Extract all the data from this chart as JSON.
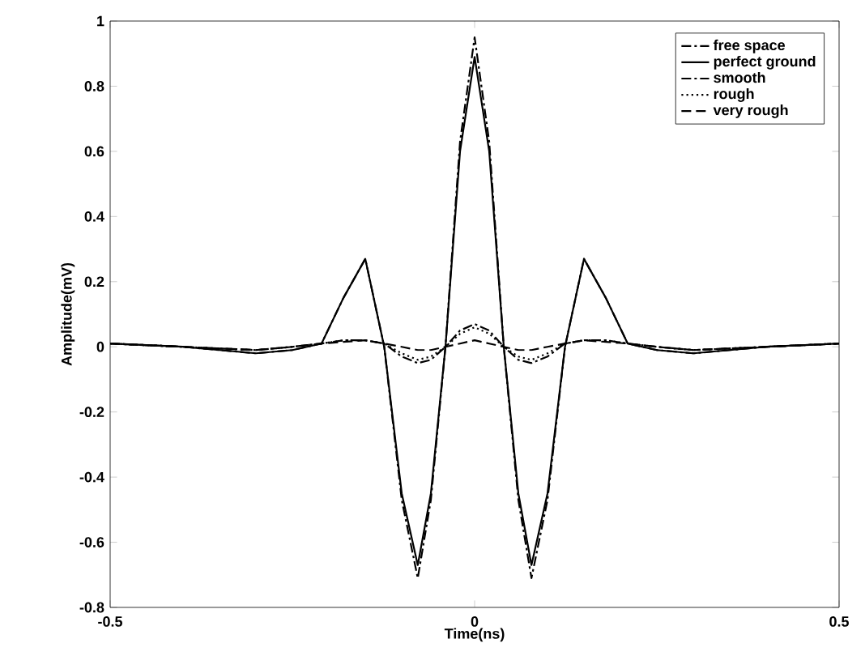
{
  "chart_data": {
    "type": "line",
    "xlabel": "Time(ns)",
    "ylabel": "Amplitude(mV)",
    "x": [
      -0.5,
      -0.4,
      -0.3,
      -0.25,
      -0.21,
      -0.18,
      -0.15,
      -0.124,
      -0.1,
      -0.078,
      -0.06,
      -0.04,
      -0.02,
      0,
      0.02,
      0.04,
      0.06,
      0.078,
      0.1,
      0.124,
      0.15,
      0.18,
      0.21,
      0.25,
      0.3,
      0.4,
      0.5
    ],
    "series": [
      {
        "name": "free space",
        "color": "#000000",
        "line_style": "dashdot",
        "values": [
          0.01,
          0,
          -0.02,
          -0.01,
          0.01,
          0.15,
          0.27,
          0,
          -0.47,
          -0.71,
          -0.47,
          0,
          0.63,
          0.95,
          0.63,
          0,
          -0.47,
          -0.71,
          -0.47,
          0,
          0.27,
          0.15,
          0.01,
          -0.01,
          -0.02,
          0,
          0.01
        ]
      },
      {
        "name": "perfect ground",
        "color": "#000000",
        "line_style": "solid",
        "values": [
          0.01,
          0,
          -0.02,
          -0.01,
          0.01,
          0.15,
          0.27,
          0,
          -0.45,
          -0.67,
          -0.45,
          0,
          0.6,
          0.89,
          0.6,
          0,
          -0.45,
          -0.67,
          -0.45,
          0,
          0.27,
          0.15,
          0.01,
          -0.01,
          -0.02,
          0,
          0.01
        ]
      },
      {
        "name": "smooth",
        "color": "#000000",
        "line_style": "dashdot",
        "values": [
          0.01,
          0,
          -0.01,
          0,
          0.01,
          0.02,
          0.02,
          0.01,
          -0.03,
          -0.05,
          -0.04,
          0,
          0.05,
          0.07,
          0.05,
          0,
          -0.04,
          -0.05,
          -0.03,
          0.01,
          0.02,
          0.02,
          0.01,
          0,
          -0.01,
          0,
          0.01
        ]
      },
      {
        "name": "rough",
        "color": "#000000",
        "line_style": "dotted",
        "values": [
          0.01,
          0,
          -0.01,
          0,
          0.01,
          0.02,
          0.02,
          0.01,
          -0.02,
          -0.04,
          -0.03,
          0,
          0.04,
          0.06,
          0.04,
          0,
          -0.03,
          -0.04,
          -0.02,
          0.01,
          0.02,
          0.02,
          0.01,
          0,
          -0.01,
          0,
          0.01
        ]
      },
      {
        "name": "very rough",
        "color": "#000000",
        "line_style": "dashed",
        "values": [
          0.01,
          0,
          -0.01,
          0,
          0.01,
          0.015,
          0.02,
          0.01,
          0,
          -0.01,
          -0.01,
          0,
          0.01,
          0.02,
          0.01,
          0,
          -0.01,
          -0.01,
          0,
          0.01,
          0.02,
          0.015,
          0.01,
          0,
          -0.01,
          0,
          0.01
        ]
      }
    ],
    "xlim": [
      -0.5,
      0.5
    ],
    "ylim": [
      -0.8,
      1
    ],
    "xticks": [
      -0.5,
      0,
      0.5
    ],
    "yticks": [
      -0.8,
      -0.6,
      -0.4,
      -0.2,
      0,
      0.2,
      0.4,
      0.6,
      0.8,
      1
    ],
    "grid": false,
    "legend": "top right",
    "marker": "none"
  }
}
